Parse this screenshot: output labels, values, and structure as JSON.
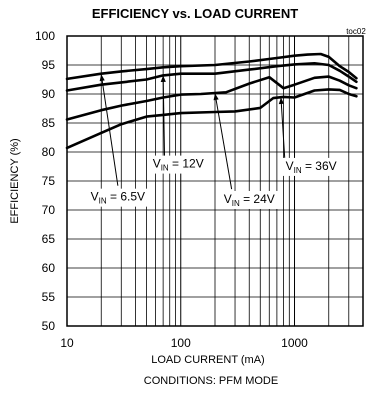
{
  "chart_data": {
    "type": "line",
    "title": "EFFICIENCY vs. LOAD CURRENT",
    "figure_id": "toc02",
    "xlabel": "LOAD CURRENT (mA)",
    "ylabel": "EFFICIENCY (%)",
    "conditions": "CONDITIONS:  PFM MODE",
    "x_scale": "log",
    "xlim": [
      10,
      4000
    ],
    "ylim": [
      50,
      100
    ],
    "x_ticks": [
      "10",
      "100",
      "1000"
    ],
    "y_ticks": [
      "50",
      "55",
      "60",
      "65",
      "70",
      "75",
      "80",
      "85",
      "90",
      "95",
      "100"
    ],
    "grid": true,
    "series": [
      {
        "name": "VIN = 6.5V",
        "label_main": "V",
        "label_sub": "IN",
        "label_value": " = 6.5V",
        "points": [
          [
            10,
            92.6
          ],
          [
            20,
            93.5
          ],
          [
            30,
            93.9
          ],
          [
            50,
            94.3
          ],
          [
            70,
            94.6
          ],
          [
            100,
            94.8
          ],
          [
            200,
            95.0
          ],
          [
            400,
            95.6
          ],
          [
            700,
            96.2
          ],
          [
            1000,
            96.6
          ],
          [
            1300,
            96.8
          ],
          [
            1700,
            96.9
          ],
          [
            2000,
            96.4
          ],
          [
            2500,
            94.8
          ],
          [
            3000,
            93.8
          ],
          [
            3500,
            92.7
          ]
        ]
      },
      {
        "name": "VIN = 12V",
        "label_main": "V",
        "label_sub": "IN",
        "label_value": " = 12V",
        "points": [
          [
            10,
            90.6
          ],
          [
            20,
            91.6
          ],
          [
            30,
            92.0
          ],
          [
            50,
            92.5
          ],
          [
            70,
            93.2
          ],
          [
            100,
            93.5
          ],
          [
            200,
            93.5
          ],
          [
            400,
            94.2
          ],
          [
            700,
            94.8
          ],
          [
            1000,
            95.1
          ],
          [
            1500,
            95.3
          ],
          [
            2000,
            95.0
          ],
          [
            2500,
            94.0
          ],
          [
            3000,
            93.0
          ],
          [
            3500,
            92.1
          ]
        ]
      },
      {
        "name": "VIN = 24V",
        "label_main": "V",
        "label_sub": "IN",
        "label_value": " = 24V",
        "points": [
          [
            10,
            85.6
          ],
          [
            20,
            87.2
          ],
          [
            30,
            88.0
          ],
          [
            50,
            88.8
          ],
          [
            70,
            89.4
          ],
          [
            100,
            89.9
          ],
          [
            150,
            90.0
          ],
          [
            250,
            90.3
          ],
          [
            400,
            91.8
          ],
          [
            600,
            92.9
          ],
          [
            800,
            91.0
          ],
          [
            1000,
            91.6
          ],
          [
            1500,
            92.8
          ],
          [
            2000,
            93.0
          ],
          [
            2500,
            92.3
          ],
          [
            3000,
            91.5
          ],
          [
            3500,
            91.0
          ]
        ]
      },
      {
        "name": "VIN = 36V",
        "label_main": "V",
        "label_sub": "IN",
        "label_value": " = 36V",
        "points": [
          [
            10,
            80.7
          ],
          [
            20,
            83.3
          ],
          [
            30,
            84.8
          ],
          [
            50,
            86.1
          ],
          [
            70,
            86.4
          ],
          [
            100,
            86.7
          ],
          [
            200,
            86.9
          ],
          [
            300,
            87.0
          ],
          [
            500,
            87.6
          ],
          [
            650,
            89.3
          ],
          [
            800,
            89.5
          ],
          [
            1000,
            89.4
          ],
          [
            1500,
            90.6
          ],
          [
            2000,
            90.8
          ],
          [
            2500,
            90.7
          ],
          [
            3000,
            90.0
          ],
          [
            3500,
            89.6
          ]
        ]
      }
    ],
    "annotations": [
      {
        "series_index": 0,
        "label_at": [
          28,
          72.3
        ],
        "arrow_from": [
          28,
          74.2
        ],
        "arrow_to": [
          20,
          93.4
        ]
      },
      {
        "series_index": 1,
        "label_at": [
          95,
          78.0
        ],
        "arrow_from": [
          72,
          79.3
        ],
        "arrow_to": [
          70,
          93.2
        ]
      },
      {
        "series_index": 2,
        "label_at": [
          400,
          71.9
        ],
        "arrow_from": [
          280,
          73.6
        ],
        "arrow_to": [
          200,
          90.1
        ]
      },
      {
        "series_index": 3,
        "label_at": [
          1400,
          77.6
        ],
        "arrow_from": [
          820,
          79.0
        ],
        "arrow_to": [
          760,
          89.4
        ]
      }
    ]
  }
}
